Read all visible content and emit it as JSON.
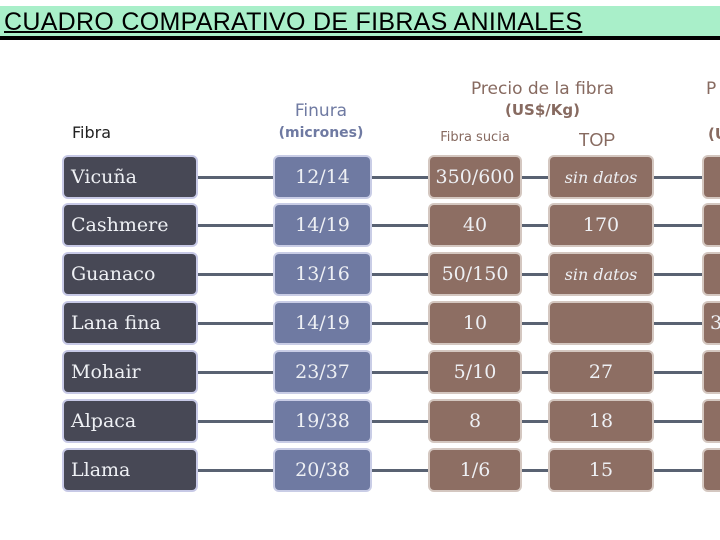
{
  "title": "CUADRO COMPARATIVO DE FIBRAS ANIMALES",
  "headers": {
    "fibra": "Fibra",
    "finura": "Finura",
    "finura_unit": "(micrones)",
    "precio": "Precio de la fibra",
    "precio_unit": "(US$/Kg)",
    "fibra_sucia": "Fibra sucia",
    "top": "TOP",
    "cut_col": "P",
    "cut_col_unit": "(U"
  },
  "rows": [
    {
      "fibra": "Vicuña",
      "finura": "12/14",
      "sucia": "350/600",
      "top": "sin datos",
      "cut": ""
    },
    {
      "fibra": "Cashmere",
      "finura": "14/19",
      "sucia": "40",
      "top": "170",
      "cut": ""
    },
    {
      "fibra": "Guanaco",
      "finura": "13/16",
      "sucia": "50/150",
      "top": "sin datos",
      "cut": ""
    },
    {
      "fibra": "Lana fina",
      "finura": "14/19",
      "sucia": "10",
      "top": "",
      "cut": "3"
    },
    {
      "fibra": "Mohair",
      "finura": "23/37",
      "sucia": "5/10",
      "top": "27",
      "cut": ""
    },
    {
      "fibra": "Alpaca",
      "finura": "19/38",
      "sucia": "8",
      "top": "18",
      "cut": ""
    },
    {
      "fibra": "Llama",
      "finura": "20/38",
      "sucia": "1/6",
      "top": "15",
      "cut": ""
    }
  ]
}
